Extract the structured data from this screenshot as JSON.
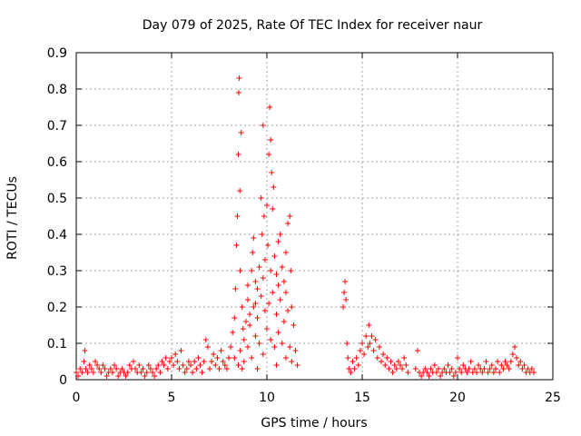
{
  "chart_data": {
    "type": "scatter",
    "title": "Day 079 of 2025, Rate Of TEC Index for receiver naur",
    "xlabel": "GPS time / hours",
    "ylabel": "ROTI / TECUs",
    "xlim": [
      0,
      25
    ],
    "ylim": [
      0,
      0.9
    ],
    "xticks": [
      0,
      5,
      10,
      15,
      20,
      25
    ],
    "yticks": [
      0,
      0.1,
      0.2,
      0.3,
      0.4,
      0.5,
      0.6,
      0.7,
      0.8,
      0.9
    ],
    "grid": true,
    "marker": "plus",
    "color": "#ff0000",
    "series": [
      {
        "points": [
          [
            0.0,
            0.02
          ],
          [
            0.1,
            0.01
          ],
          [
            0.2,
            0.03
          ],
          [
            0.3,
            0.02
          ],
          [
            0.4,
            0.05
          ],
          [
            0.45,
            0.08
          ],
          [
            0.5,
            0.03
          ],
          [
            0.6,
            0.02
          ],
          [
            0.7,
            0.04
          ],
          [
            0.8,
            0.03
          ],
          [
            0.9,
            0.02
          ],
          [
            1.0,
            0.05
          ],
          [
            1.1,
            0.04
          ],
          [
            1.2,
            0.03
          ],
          [
            1.3,
            0.02
          ],
          [
            1.4,
            0.04
          ],
          [
            1.5,
            0.03
          ],
          [
            1.6,
            0.01
          ],
          [
            1.7,
            0.02
          ],
          [
            1.8,
            0.03
          ],
          [
            1.9,
            0.02
          ],
          [
            2.0,
            0.04
          ],
          [
            2.1,
            0.03
          ],
          [
            2.2,
            0.01
          ],
          [
            2.3,
            0.02
          ],
          [
            2.4,
            0.03
          ],
          [
            2.5,
            0.02
          ],
          [
            2.6,
            0.01
          ],
          [
            2.7,
            0.02
          ],
          [
            2.8,
            0.04
          ],
          [
            2.9,
            0.03
          ],
          [
            3.0,
            0.05
          ],
          [
            3.1,
            0.03
          ],
          [
            3.2,
            0.02
          ],
          [
            3.3,
            0.04
          ],
          [
            3.4,
            0.02
          ],
          [
            3.5,
            0.03
          ],
          [
            3.6,
            0.01
          ],
          [
            3.7,
            0.02
          ],
          [
            3.8,
            0.04
          ],
          [
            3.9,
            0.03
          ],
          [
            4.0,
            0.02
          ],
          [
            4.1,
            0.01
          ],
          [
            4.2,
            0.03
          ],
          [
            4.3,
            0.04
          ],
          [
            4.4,
            0.02
          ],
          [
            4.5,
            0.05
          ],
          [
            4.6,
            0.04
          ],
          [
            4.7,
            0.06
          ],
          [
            4.8,
            0.03
          ],
          [
            4.9,
            0.05
          ],
          [
            5.0,
            0.06
          ],
          [
            5.1,
            0.04
          ],
          [
            5.2,
            0.07
          ],
          [
            5.3,
            0.05
          ],
          [
            5.4,
            0.03
          ],
          [
            5.5,
            0.08
          ],
          [
            5.6,
            0.04
          ],
          [
            5.7,
            0.02
          ],
          [
            5.8,
            0.03
          ],
          [
            5.9,
            0.05
          ],
          [
            6.0,
            0.04
          ],
          [
            6.1,
            0.02
          ],
          [
            6.2,
            0.05
          ],
          [
            6.3,
            0.03
          ],
          [
            6.4,
            0.06
          ],
          [
            6.5,
            0.04
          ],
          [
            6.6,
            0.02
          ],
          [
            6.7,
            0.05
          ],
          [
            6.8,
            0.11
          ],
          [
            6.9,
            0.09
          ],
          [
            7.0,
            0.03
          ],
          [
            7.1,
            0.05
          ],
          [
            7.2,
            0.07
          ],
          [
            7.3,
            0.04
          ],
          [
            7.4,
            0.06
          ],
          [
            7.5,
            0.03
          ],
          [
            7.6,
            0.08
          ],
          [
            7.7,
            0.05
          ],
          [
            7.8,
            0.04
          ],
          [
            7.9,
            0.03
          ],
          [
            8.0,
            0.06
          ],
          [
            8.1,
            0.09
          ],
          [
            8.2,
            0.13
          ],
          [
            8.3,
            0.17
          ],
          [
            8.35,
            0.25
          ],
          [
            8.4,
            0.37
          ],
          [
            8.45,
            0.45
          ],
          [
            8.5,
            0.62
          ],
          [
            8.52,
            0.79
          ],
          [
            8.55,
            0.83
          ],
          [
            8.58,
            0.52
          ],
          [
            8.6,
            0.3
          ],
          [
            8.65,
            0.68
          ],
          [
            8.7,
            0.2
          ],
          [
            8.75,
            0.14
          ],
          [
            8.8,
            0.11
          ],
          [
            8.9,
            0.16
          ],
          [
            9.0,
            0.22
          ],
          [
            9.1,
            0.18
          ],
          [
            9.2,
            0.3
          ],
          [
            9.25,
            0.35
          ],
          [
            9.3,
            0.39
          ],
          [
            9.4,
            0.27
          ],
          [
            9.5,
            0.25
          ],
          [
            9.6,
            0.31
          ],
          [
            9.7,
            0.5
          ],
          [
            9.75,
            0.4
          ],
          [
            9.8,
            0.7
          ],
          [
            9.85,
            0.45
          ],
          [
            9.9,
            0.33
          ],
          [
            10.0,
            0.48
          ],
          [
            10.05,
            0.37
          ],
          [
            10.1,
            0.62
          ],
          [
            10.15,
            0.75
          ],
          [
            10.2,
            0.66
          ],
          [
            10.25,
            0.57
          ],
          [
            10.3,
            0.47
          ],
          [
            10.35,
            0.53
          ],
          [
            10.4,
            0.34
          ],
          [
            10.5,
            0.29
          ],
          [
            10.6,
            0.38
          ],
          [
            10.7,
            0.4
          ],
          [
            10.8,
            0.31
          ],
          [
            10.9,
            0.27
          ],
          [
            11.0,
            0.35
          ],
          [
            11.1,
            0.43
          ],
          [
            11.2,
            0.45
          ],
          [
            11.25,
            0.3
          ],
          [
            11.3,
            0.2
          ],
          [
            11.4,
            0.15
          ],
          [
            11.5,
            0.08
          ],
          [
            11.6,
            0.04
          ],
          [
            8.6,
            0.08
          ],
          [
            8.8,
            0.05
          ],
          [
            9.0,
            0.09
          ],
          [
            9.2,
            0.06
          ],
          [
            9.4,
            0.12
          ],
          [
            9.6,
            0.1
          ],
          [
            9.8,
            0.07
          ],
          [
            10.0,
            0.14
          ],
          [
            10.2,
            0.11
          ],
          [
            10.4,
            0.09
          ],
          [
            10.6,
            0.13
          ],
          [
            10.8,
            0.1
          ],
          [
            11.0,
            0.06
          ],
          [
            11.2,
            0.09
          ],
          [
            9.1,
            0.15
          ],
          [
            9.3,
            0.2
          ],
          [
            9.5,
            0.17
          ],
          [
            9.7,
            0.23
          ],
          [
            9.9,
            0.19
          ],
          [
            10.1,
            0.21
          ],
          [
            10.3,
            0.24
          ],
          [
            10.5,
            0.18
          ],
          [
            10.7,
            0.22
          ],
          [
            10.9,
            0.16
          ],
          [
            11.1,
            0.19
          ],
          [
            9.0,
            0.26
          ],
          [
            9.4,
            0.21
          ],
          [
            9.8,
            0.28
          ],
          [
            10.2,
            0.3
          ],
          [
            10.6,
            0.26
          ],
          [
            11.0,
            0.24
          ],
          [
            8.3,
            0.06
          ],
          [
            8.5,
            0.04
          ],
          [
            8.7,
            0.03
          ],
          [
            9.5,
            0.03
          ],
          [
            10.5,
            0.04
          ],
          [
            11.3,
            0.05
          ],
          [
            14.0,
            0.2
          ],
          [
            14.05,
            0.24
          ],
          [
            14.1,
            0.27
          ],
          [
            14.15,
            0.22
          ],
          [
            14.2,
            0.1
          ],
          [
            14.25,
            0.06
          ],
          [
            14.3,
            0.03
          ],
          [
            14.4,
            0.02
          ],
          [
            14.5,
            0.05
          ],
          [
            14.6,
            0.03
          ],
          [
            14.7,
            0.06
          ],
          [
            14.8,
            0.04
          ],
          [
            14.9,
            0.08
          ],
          [
            15.0,
            0.1
          ],
          [
            15.1,
            0.07
          ],
          [
            15.2,
            0.12
          ],
          [
            15.3,
            0.09
          ],
          [
            15.35,
            0.15
          ],
          [
            15.4,
            0.1
          ],
          [
            15.5,
            0.12
          ],
          [
            15.6,
            0.08
          ],
          [
            15.7,
            0.11
          ],
          [
            15.8,
            0.06
          ],
          [
            15.9,
            0.09
          ],
          [
            16.0,
            0.05
          ],
          [
            16.1,
            0.07
          ],
          [
            16.2,
            0.04
          ],
          [
            16.3,
            0.06
          ],
          [
            16.4,
            0.03
          ],
          [
            16.5,
            0.05
          ],
          [
            16.6,
            0.02
          ],
          [
            16.7,
            0.04
          ],
          [
            16.8,
            0.03
          ],
          [
            16.9,
            0.05
          ],
          [
            17.0,
            0.04
          ],
          [
            17.1,
            0.03
          ],
          [
            17.2,
            0.06
          ],
          [
            17.3,
            0.04
          ],
          [
            17.4,
            0.02
          ],
          [
            17.8,
            0.03
          ],
          [
            17.9,
            0.08
          ],
          [
            18.0,
            0.02
          ],
          [
            18.1,
            0.01
          ],
          [
            18.2,
            0.02
          ],
          [
            18.3,
            0.03
          ],
          [
            18.4,
            0.02
          ],
          [
            18.5,
            0.01
          ],
          [
            18.6,
            0.03
          ],
          [
            18.7,
            0.02
          ],
          [
            18.8,
            0.04
          ],
          [
            18.9,
            0.02
          ],
          [
            19.0,
            0.03
          ],
          [
            19.1,
            0.01
          ],
          [
            19.2,
            0.02
          ],
          [
            19.3,
            0.03
          ],
          [
            19.4,
            0.02
          ],
          [
            19.5,
            0.04
          ],
          [
            19.6,
            0.02
          ],
          [
            19.7,
            0.03
          ],
          [
            19.8,
            0.01
          ],
          [
            19.9,
            0.02
          ],
          [
            20.0,
            0.06
          ],
          [
            20.1,
            0.03
          ],
          [
            20.2,
            0.02
          ],
          [
            20.3,
            0.04
          ],
          [
            20.4,
            0.03
          ],
          [
            20.5,
            0.02
          ],
          [
            20.6,
            0.03
          ],
          [
            20.7,
            0.05
          ],
          [
            20.8,
            0.02
          ],
          [
            20.9,
            0.03
          ],
          [
            21.0,
            0.02
          ],
          [
            21.1,
            0.04
          ],
          [
            21.2,
            0.03
          ],
          [
            21.3,
            0.02
          ],
          [
            21.4,
            0.03
          ],
          [
            21.5,
            0.05
          ],
          [
            21.6,
            0.02
          ],
          [
            21.7,
            0.03
          ],
          [
            21.8,
            0.04
          ],
          [
            21.9,
            0.02
          ],
          [
            22.0,
            0.03
          ],
          [
            22.1,
            0.05
          ],
          [
            22.2,
            0.02
          ],
          [
            22.3,
            0.04
          ],
          [
            22.4,
            0.03
          ],
          [
            22.5,
            0.05
          ],
          [
            22.6,
            0.04
          ],
          [
            22.7,
            0.03
          ],
          [
            22.8,
            0.05
          ],
          [
            22.9,
            0.07
          ],
          [
            23.0,
            0.09
          ],
          [
            23.1,
            0.06
          ],
          [
            23.2,
            0.04
          ],
          [
            23.3,
            0.05
          ],
          [
            23.4,
            0.03
          ],
          [
            23.5,
            0.04
          ],
          [
            23.6,
            0.02
          ],
          [
            23.7,
            0.03
          ],
          [
            23.8,
            0.02
          ],
          [
            23.9,
            0.03
          ],
          [
            24.0,
            0.02
          ]
        ]
      }
    ]
  }
}
